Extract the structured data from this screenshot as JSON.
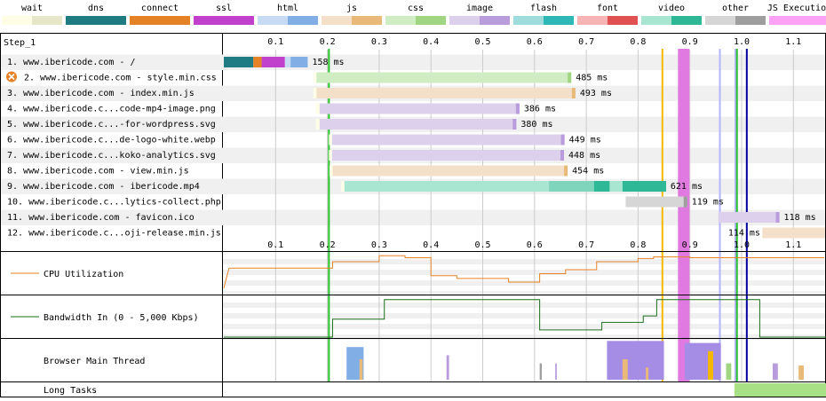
{
  "legend": [
    {
      "label": "wait",
      "c1": "#fefee6",
      "c2": "#e6e6c8"
    },
    {
      "label": "dns",
      "c1": "#1f7c83",
      "c2": "#1f7c83"
    },
    {
      "label": "connect",
      "c1": "#e58226",
      "c2": "#e58226"
    },
    {
      "label": "ssl",
      "c1": "#c141cd",
      "c2": "#c141cd"
    },
    {
      "label": "html",
      "c1": "#c8dbf5",
      "c2": "#82aee6"
    },
    {
      "label": "js",
      "c1": "#f4e0c8",
      "c2": "#e9b97a"
    },
    {
      "label": "css",
      "c1": "#d0ecc2",
      "c2": "#a0d682"
    },
    {
      "label": "image",
      "c1": "#ddd0ec",
      "c2": "#b89cdc"
    },
    {
      "label": "flash",
      "c1": "#9fdcdc",
      "c2": "#2db7b7"
    },
    {
      "label": "font",
      "c1": "#f6b4b4",
      "c2": "#e05252"
    },
    {
      "label": "video",
      "c1": "#a8e6d2",
      "c2": "#2fb896"
    },
    {
      "label": "other",
      "c1": "#d6d6d6",
      "c2": "#9e9e9e"
    },
    {
      "label": "JS Execution",
      "c1": "#fca3f8",
      "c2": "#fca3f8"
    }
  ],
  "step_label": "Step_1",
  "ticks": [
    "0.1",
    "0.2",
    "0.3",
    "0.4",
    "0.5",
    "0.6",
    "0.7",
    "0.8",
    "0.9",
    "1.0",
    "1.1"
  ],
  "requests": [
    {
      "label": "1. www.ibericode.com - /",
      "time": "158 ms",
      "warn": false
    },
    {
      "label": "2. www.ibericode.com - style.min.css",
      "time": "485 ms",
      "warn": true
    },
    {
      "label": "3. www.ibericode.com - index.min.js",
      "time": "493 ms",
      "warn": false
    },
    {
      "label": "4. www.ibericode.c...code-mp4-image.png",
      "time": "386 ms",
      "warn": false
    },
    {
      "label": "5. www.ibericode.c...-for-wordpress.svg",
      "time": "380 ms",
      "warn": false
    },
    {
      "label": "6. www.ibericode.c...de-logo-white.webp",
      "time": "449 ms",
      "warn": false
    },
    {
      "label": "7. www.ibericode.c...koko-analytics.svg",
      "time": "448 ms",
      "warn": false
    },
    {
      "label": "8. www.ibericode.com - view.min.js",
      "time": "454 ms",
      "warn": false
    },
    {
      "label": "9. www.ibericode.com - ibericode.mp4",
      "time": "621 ms",
      "warn": false
    },
    {
      "label": "10. www.ibericode.c...lytics-collect.php",
      "time": "119 ms",
      "warn": false
    },
    {
      "label": "11. www.ibericode.com - favicon.ico",
      "time": "118 ms",
      "warn": false
    },
    {
      "label": "12. www.ibericode.c...oji-release.min.js",
      "time": "114 ms",
      "warn": false
    }
  ],
  "graphs": {
    "cpu": "CPU Utilization",
    "bandwidth": "Bandwidth In (0 - 5,000 Kbps)",
    "main_thread": "Browser Main Thread",
    "long_tasks": "Long Tasks"
  },
  "colors": {
    "cpu_line": "#e58226",
    "bandwidth_line": "#1a6e1a",
    "start_render": "#28c228",
    "dom_loaded": "#f5b800",
    "load": "#0000a0",
    "js_exec": "#e07ae0",
    "long_task": "#a8e086"
  }
}
